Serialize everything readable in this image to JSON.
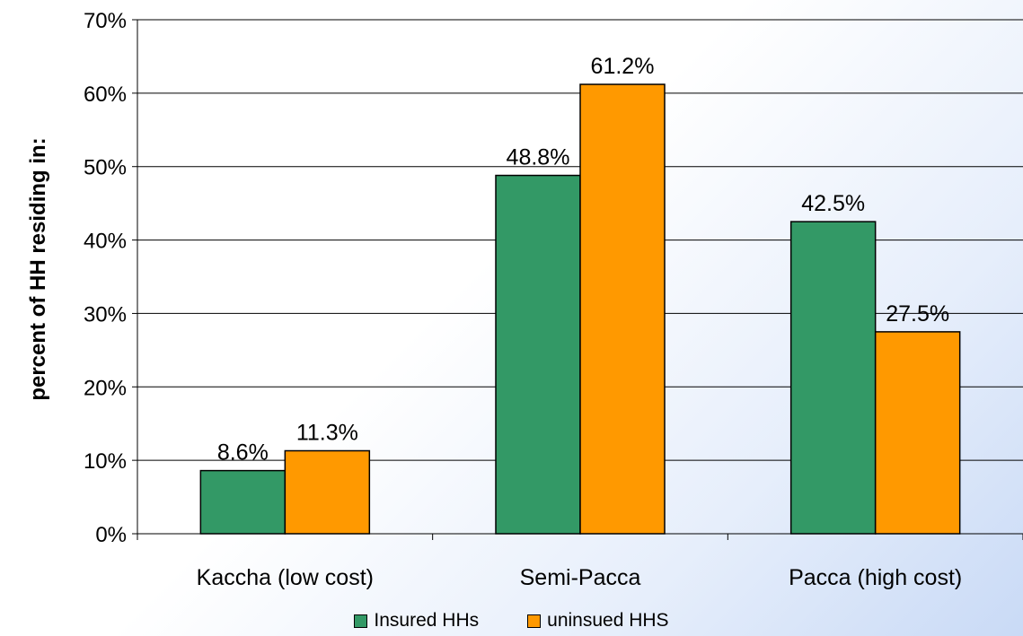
{
  "chart_data": {
    "type": "bar",
    "categories": [
      "Kaccha (low cost)",
      "Semi-Pacca",
      "Pacca (high cost)"
    ],
    "series": [
      {
        "name": "Insured HHs",
        "values": [
          8.6,
          48.8,
          42.5
        ],
        "labels": [
          "8.6%",
          "48.8%",
          "42.5%"
        ],
        "color": "#339966"
      },
      {
        "name": "uninsued HHS",
        "values": [
          11.3,
          61.2,
          27.5
        ],
        "labels": [
          "11.3%",
          "61.2%",
          "27.5%"
        ],
        "color": "#FF9900"
      }
    ],
    "ylabel": "percent of HH residing in:",
    "ylim": [
      0,
      70
    ],
    "yticks": [
      0,
      10,
      20,
      30,
      40,
      50,
      60,
      70
    ],
    "ytick_labels": [
      "0%",
      "10%",
      "20%",
      "30%",
      "40%",
      "50%",
      "60%",
      "70%"
    ],
    "grid": true,
    "legend_position": "bottom"
  }
}
